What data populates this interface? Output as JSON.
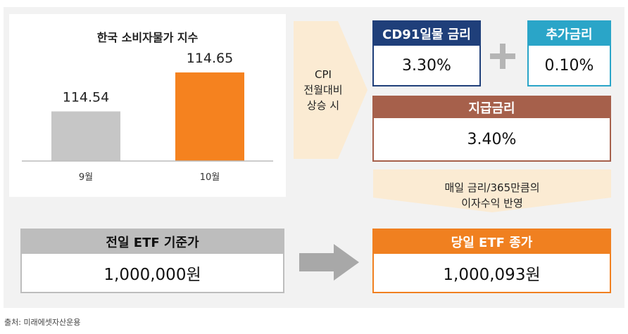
{
  "chart": {
    "title": "한국 소비자물가 지수"
  },
  "chart_data": {
    "type": "bar",
    "title": "한국 소비자물가 지수",
    "categories": [
      "9월",
      "10월"
    ],
    "values": [
      114.54,
      114.65
    ],
    "value_labels": [
      "114.54",
      "114.65"
    ],
    "colors": [
      "#c6c6c6",
      "#f5821f"
    ],
    "xlabel": "",
    "ylabel": "",
    "ylim": [
      114.4,
      114.7
    ],
    "grid": false
  },
  "cpi_note": {
    "line1": "CPI",
    "line2": "전월대비",
    "line3": "상승 시"
  },
  "cd_rate": {
    "label": "CD91일물 금리",
    "value": "3.30%"
  },
  "add_rate": {
    "label": "추가금리",
    "value": "0.10%"
  },
  "pay_rate": {
    "label": "지급금리",
    "value": "3.40%"
  },
  "daily_note": {
    "line1": "매일 금리/365만큼의",
    "line2": "이자수익 반영"
  },
  "prev_etf": {
    "label": "전일 ETF 기준가",
    "value": "1,000,000원"
  },
  "today_etf": {
    "label": "당일 ETF 종가",
    "value": "1,000,093원"
  },
  "source": "출처: 미래에셋자산운용",
  "colors": {
    "cd_header": "#1f3f7a",
    "add_header": "#2aa5c8",
    "pay_header": "#a6604b",
    "prev_header": "#bdbdbd",
    "today_header": "#f08020",
    "arrow_fill": "#fbebd3",
    "gray_arrow": "#a8a8a8"
  }
}
